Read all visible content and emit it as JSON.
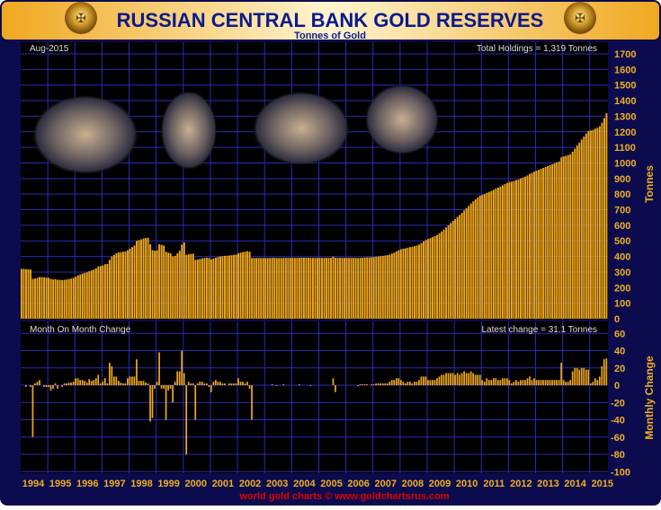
{
  "colors": {
    "frame": "#0b0b4e",
    "plot_bg": "#000000",
    "grid": "#2a2ab8",
    "bar": "#f0a818",
    "title": "#0a1a8c",
    "axis_label": "#f0b020",
    "footer": "#e00000",
    "header_band": "#f8d070"
  },
  "header": {
    "title": "RUSSIAN CENTRAL BANK GOLD RESERVES",
    "subtitle": "Tonnes of Gold",
    "emblem_icon": "double-headed-eagle-emblem",
    "emblem_text": "БАНК РОССИИ"
  },
  "footer": "world gold charts © www.goldchartsrus.com",
  "photos": [
    "officials-with-gold-bars",
    "official-holding-gold-bar",
    "officials-examining-gold-bar",
    "official-portrait"
  ],
  "chart_data": [
    {
      "type": "bar",
      "title": "Aug-2015",
      "annotation": "Total Holdings = 1,319 Tonnes",
      "ylabel": "Tonnes",
      "ylim": [
        0,
        1700
      ],
      "yticks": [
        0,
        100,
        200,
        300,
        400,
        500,
        600,
        700,
        800,
        900,
        1000,
        1100,
        1200,
        1300,
        1400,
        1500,
        1600,
        1700
      ],
      "grid": true,
      "x_start": "1994-01",
      "x_end": "2015-08",
      "frequency": "monthly",
      "values": [
        320,
        320,
        318,
        318,
        316,
        256,
        258,
        262,
        268,
        268,
        266,
        264,
        262,
        256,
        252,
        254,
        250,
        250,
        248,
        250,
        252,
        255,
        258,
        262,
        270,
        278,
        284,
        290,
        295,
        298,
        305,
        310,
        316,
        324,
        336,
        338,
        342,
        350,
        352,
        378,
        400,
        410,
        420,
        425,
        428,
        430,
        432,
        440,
        450,
        460,
        470,
        500,
        505,
        510,
        515,
        518,
        520,
        478,
        440,
        436,
        440,
        478,
        474,
        470,
        430,
        424,
        420,
        400,
        404,
        420,
        436,
        476,
        490,
        410,
        414,
        416,
        418,
        378,
        380,
        384,
        388,
        390,
        392,
        390,
        382,
        386,
        392,
        396,
        400,
        402,
        404,
        404,
        406,
        408,
        410,
        412,
        420,
        424,
        428,
        430,
        434,
        430,
        390,
        390,
        390,
        390,
        390,
        390,
        390,
        390,
        390,
        391,
        391,
        390,
        390,
        390,
        391,
        391,
        391,
        391,
        391,
        391,
        391,
        392,
        392,
        392,
        392,
        392,
        391,
        391,
        391,
        391,
        391,
        391,
        391,
        391,
        391,
        391,
        399,
        391,
        391,
        391,
        391,
        391,
        391,
        391,
        391,
        391,
        391,
        390,
        391,
        392,
        393,
        394,
        394,
        395,
        396,
        398,
        400,
        402,
        404,
        406,
        408,
        412,
        418,
        424,
        432,
        440,
        446,
        450,
        452,
        456,
        460,
        462,
        466,
        470,
        476,
        486,
        496,
        506,
        512,
        518,
        524,
        530,
        538,
        548,
        560,
        572,
        586,
        600,
        614,
        628,
        640,
        654,
        666,
        680,
        696,
        710,
        724,
        740,
        754,
        766,
        778,
        790,
        796,
        800,
        808,
        814,
        820,
        828,
        836,
        842,
        848,
        856,
        864,
        872,
        878,
        880,
        884,
        890,
        894,
        900,
        906,
        912,
        920,
        930,
        936,
        944,
        950,
        956,
        962,
        968,
        974,
        980,
        986,
        992,
        998,
        1004,
        1010,
        1036,
        1042,
        1046,
        1050,
        1056,
        1072,
        1092,
        1112,
        1130,
        1150,
        1170,
        1188,
        1206,
        1208,
        1212,
        1220,
        1226,
        1236,
        1258,
        1288,
        1319
      ]
    },
    {
      "type": "bar",
      "title": "Month On Month Change",
      "annotation": "Latest change = 31.1 Tonnes",
      "ylabel": "Monthly Change",
      "ylim": [
        -100,
        60
      ],
      "yticks": [
        -100,
        -80,
        -60,
        -40,
        -20,
        0,
        20,
        40,
        60
      ],
      "grid": true,
      "derived_from": "month-over-month difference of holdings",
      "xticks": [
        "1994",
        "1995",
        "1996",
        "1997",
        "1998",
        "1999",
        "2000",
        "2001",
        "2002",
        "2003",
        "2004",
        "2005",
        "2006",
        "2007",
        "2008",
        "2009",
        "2010",
        "2011",
        "2012",
        "2013",
        "2014",
        "2015"
      ]
    }
  ]
}
